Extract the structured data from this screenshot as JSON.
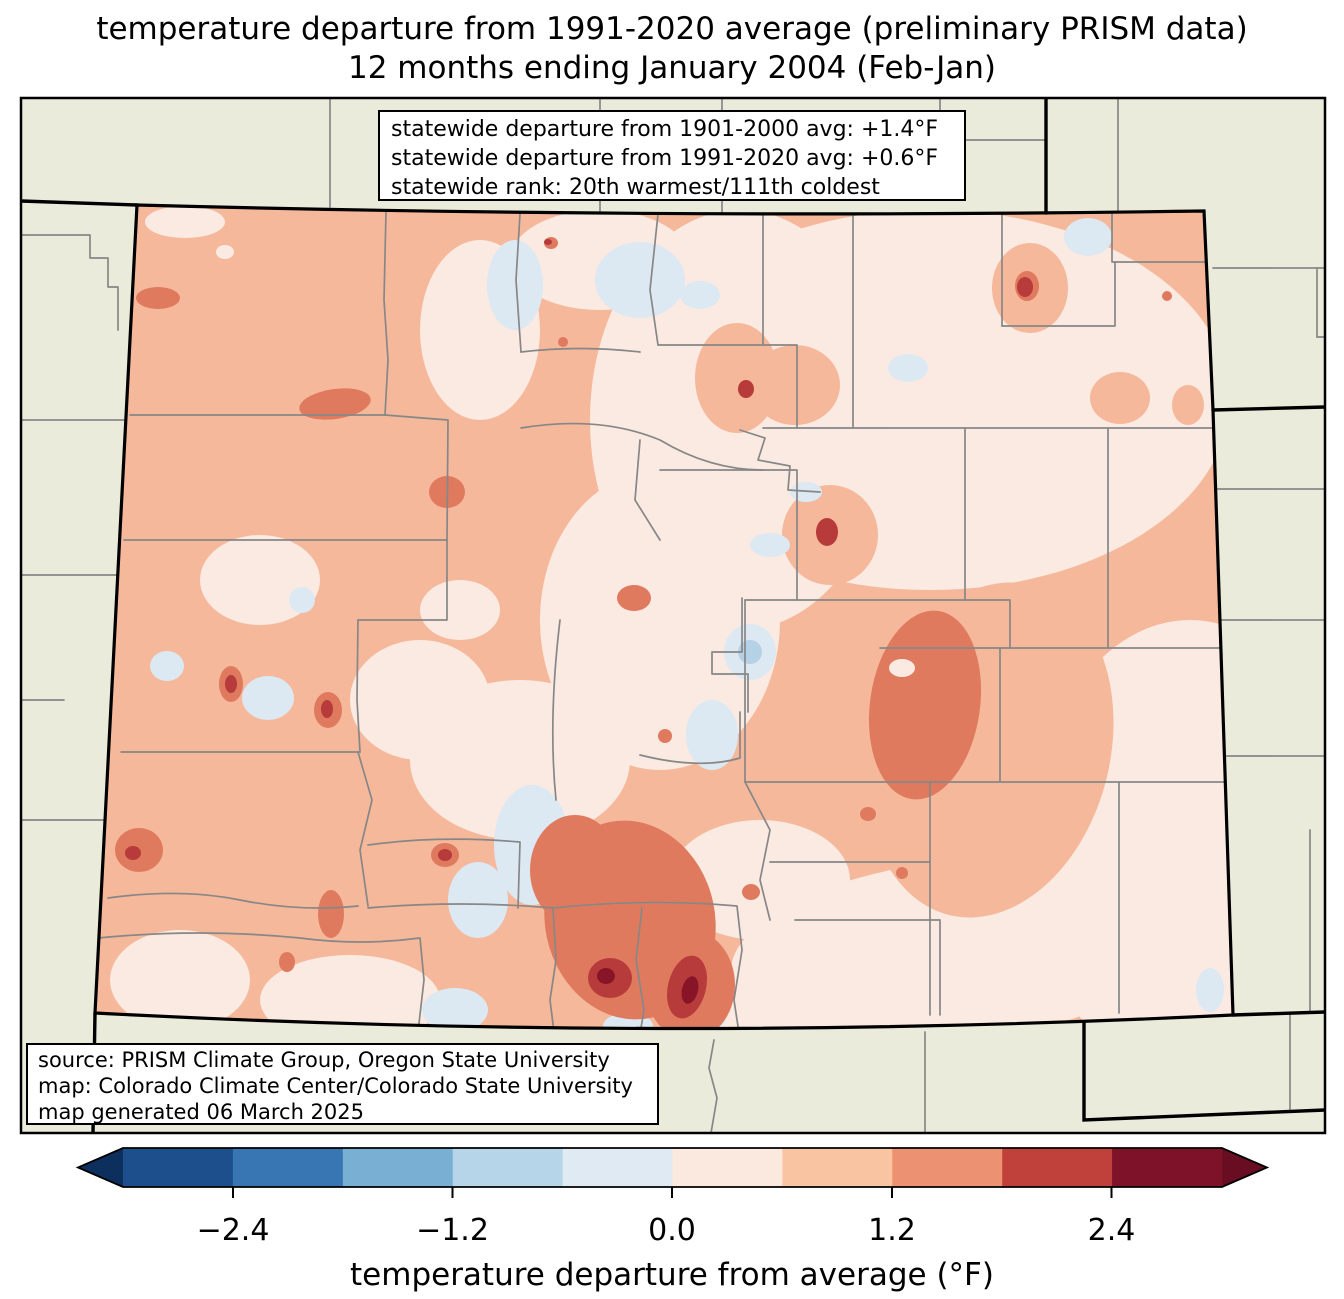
{
  "title": {
    "line1": "temperature departure from 1991-2020 average (preliminary PRISM data)",
    "line2": "12 months ending January 2004 (Feb-Jan)"
  },
  "stats_box": {
    "line1": "statewide departure from 1901-2000 avg: +1.4°F",
    "line2": "statewide departure from 1991-2020 avg: +0.6°F",
    "line3": "statewide rank: 20th warmest/111th coldest"
  },
  "source_box": {
    "line1": "source: PRISM Climate Group, Oregon State University",
    "line2": "map: Colorado Climate Center/Colorado State University",
    "line3": "map generated 06 March 2025"
  },
  "colorbar": {
    "axis_label": "temperature departure from average (°F)",
    "tick_labels": [
      "−2.4",
      "−1.2",
      "0.0",
      "1.2",
      "2.4"
    ],
    "tick_values": [
      -2.4,
      -1.2,
      0.0,
      1.2,
      2.4
    ],
    "range": [
      -3.0,
      3.0
    ],
    "bin_width": 0.6,
    "under_color": "#0c2f5e",
    "over_color": "#690d22",
    "colors": [
      "#1d4f8c",
      "#3876b3",
      "#79afd3",
      "#b7d5e8",
      "#dfeaf2",
      "#fbe8de",
      "#f8c4a2",
      "#ec9273",
      "#c0413c",
      "#7d1228"
    ]
  },
  "map": {
    "region": "Colorado",
    "background_color": "#eaebdb",
    "state_border_color": "#000000",
    "county_line_color": "#878787",
    "bin_colors": {
      "-1.2_-0.6": "#b5d1e6",
      "-0.6_0.0": "#dce8f2",
      "0.0_0.6": "#fbeae2",
      "0.6_1.2": "#f5b89b",
      "1.2_1.8": "#e07a5e",
      "1.8_2.4": "#b73b3a",
      "2.4_3.0": "#871527"
    }
  }
}
